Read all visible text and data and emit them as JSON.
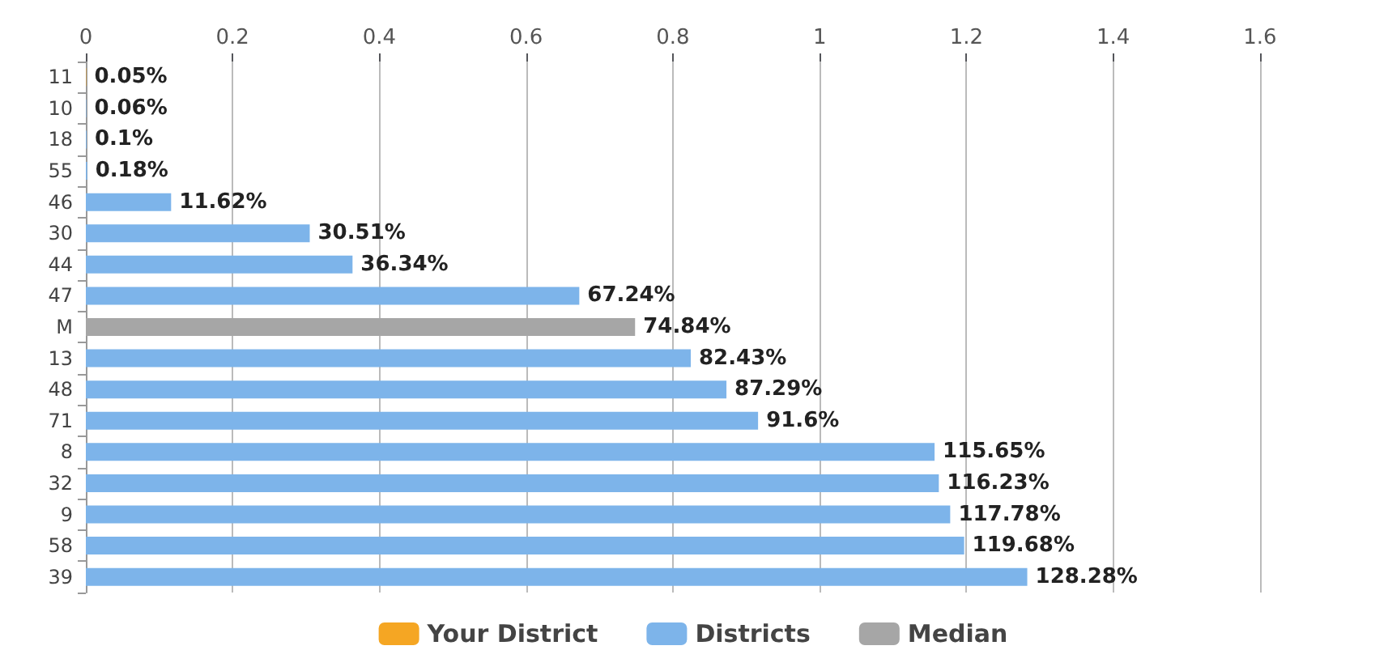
{
  "chart_data": {
    "type": "bar",
    "orientation": "horizontal",
    "stacked": true,
    "categories": [
      "11",
      "10",
      "18",
      "55",
      "46",
      "30",
      "44",
      "47",
      "M",
      "13",
      "48",
      "71",
      "8",
      "32",
      "9",
      "58",
      "39"
    ],
    "series": [
      {
        "name": "Your District",
        "color": "#f5a623",
        "values": [
          0.0005,
          null,
          null,
          null,
          null,
          null,
          null,
          null,
          null,
          null,
          null,
          null,
          null,
          null,
          null,
          null,
          null
        ],
        "value_labels": [
          "0.05%",
          null,
          null,
          null,
          null,
          null,
          null,
          null,
          null,
          null,
          null,
          null,
          null,
          null,
          null,
          null,
          null
        ]
      },
      {
        "name": "Districts",
        "color": "#7db4ea",
        "values": [
          null,
          0.0006,
          0.001,
          0.0018,
          0.1162,
          0.3051,
          0.3634,
          0.6724,
          null,
          0.8243,
          0.8729,
          0.916,
          1.1565,
          1.1623,
          1.1778,
          1.1968,
          1.2828
        ],
        "value_labels": [
          null,
          "0.06%",
          "0.1%",
          "0.18%",
          "11.62%",
          "30.51%",
          "36.34%",
          "67.24%",
          null,
          "82.43%",
          "87.29%",
          "91.6%",
          "115.65%",
          "116.23%",
          "117.78%",
          "119.68%",
          "128.28%"
        ]
      },
      {
        "name": "Median",
        "color": "#a6a6a6",
        "values": [
          null,
          null,
          null,
          null,
          null,
          null,
          null,
          null,
          0.7484,
          null,
          null,
          null,
          null,
          null,
          null,
          null,
          null
        ],
        "value_labels": [
          null,
          null,
          null,
          null,
          null,
          null,
          null,
          null,
          "74.84%",
          null,
          null,
          null,
          null,
          null,
          null,
          null,
          null
        ]
      }
    ],
    "xlim": [
      0,
      1.6
    ],
    "xticks": [
      0,
      0.2,
      0.4,
      0.6,
      0.8,
      1,
      1.2,
      1.4,
      1.6
    ],
    "grid": "x",
    "legend": "bottom"
  }
}
